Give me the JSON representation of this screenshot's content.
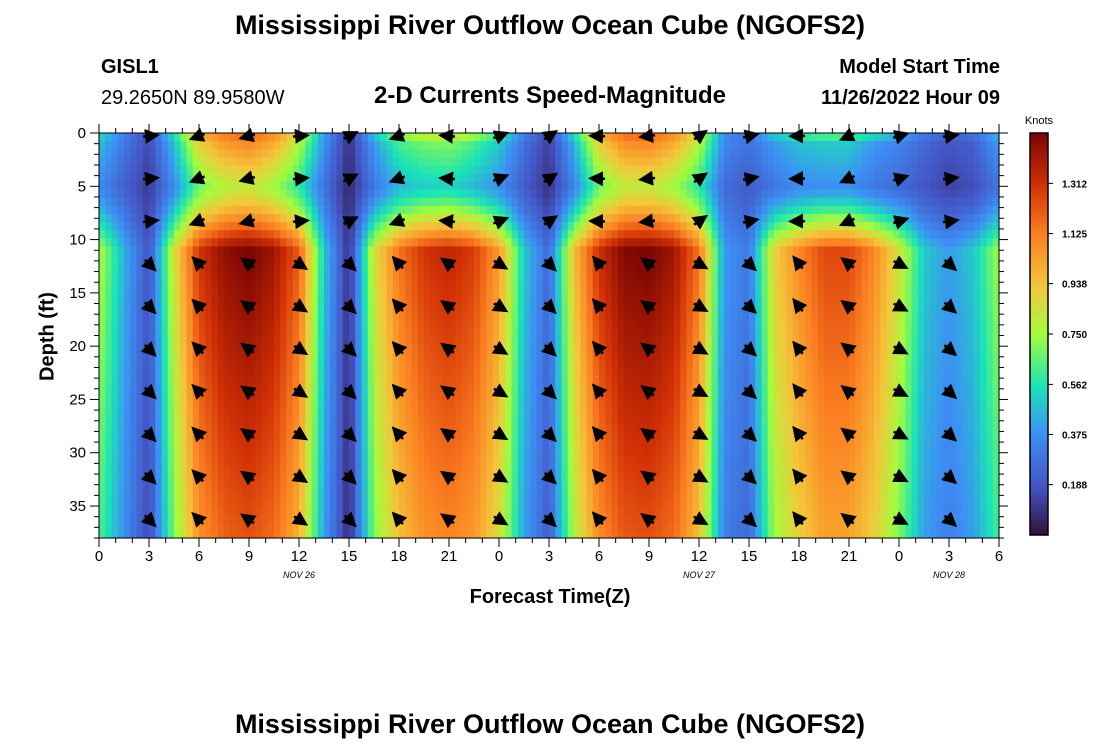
{
  "header": {
    "title": "Mississippi River Outflow Ocean Cube (NGOFS2)",
    "station": "GISL1",
    "location": "29.2650N  89.9580W",
    "subtitle": "2-D Currents Speed-Magnitude",
    "model_start_label": "Model Start Time",
    "model_start_value": "11/26/2022 Hour 09"
  },
  "footer": {
    "title": "Mississippi River Outflow Ocean Cube (NGOFS2)"
  },
  "chart_data": {
    "type": "heatmap",
    "xlabel": "Forecast Time(Z)",
    "ylabel": "Depth (ft)",
    "x_tick_labels": [
      "0",
      "3",
      "6",
      "9",
      "12",
      "15",
      "18",
      "21",
      "0",
      "3",
      "6",
      "9",
      "12",
      "15",
      "18",
      "21",
      "0",
      "3",
      "6"
    ],
    "x_range_hours": [
      0,
      54
    ],
    "date_labels": [
      {
        "text": "NOV 26",
        "hour": 12
      },
      {
        "text": "NOV 27",
        "hour": 36
      },
      {
        "text": "NOV 28",
        "hour": 51
      }
    ],
    "y_ticks": [
      0,
      5,
      10,
      15,
      20,
      25,
      30,
      35
    ],
    "y_range_ft": [
      0,
      38
    ],
    "colorbar": {
      "unit": "Knots",
      "ticks": [
        "0.188",
        "0.375",
        "0.562",
        "0.750",
        "0.938",
        "1.125",
        "1.312"
      ],
      "range": [
        0.0,
        1.5
      ]
    },
    "speed_profile": {
      "hours": [
        0,
        1.5,
        3,
        4.5,
        6,
        7.5,
        9,
        10.5,
        12,
        13.5,
        15,
        16.5,
        18,
        19.5,
        21,
        22.5,
        24,
        25.5,
        27,
        28.5,
        30,
        31.5,
        33,
        34.5,
        36,
        37.5,
        39,
        40.5,
        42,
        43.5,
        45,
        46.5,
        48,
        49.5,
        51,
        52.5,
        54
      ],
      "deep": [
        0.78,
        0.45,
        0.18,
        0.85,
        1.3,
        1.45,
        1.5,
        1.42,
        1.2,
        0.5,
        0.08,
        0.85,
        1.15,
        1.3,
        1.35,
        1.28,
        1.05,
        0.5,
        0.25,
        0.95,
        1.32,
        1.48,
        1.5,
        1.42,
        1.15,
        0.4,
        0.3,
        0.9,
        1.1,
        1.25,
        1.25,
        1.1,
        0.85,
        0.5,
        0.4,
        0.5,
        0.75
      ],
      "surface": [
        0.48,
        0.3,
        0.15,
        0.48,
        0.9,
        1.05,
        1.1,
        1.0,
        0.78,
        0.38,
        0.08,
        0.4,
        0.62,
        0.68,
        0.7,
        0.62,
        0.5,
        0.28,
        0.12,
        0.45,
        0.9,
        1.08,
        1.1,
        1.0,
        0.78,
        0.35,
        0.28,
        0.4,
        0.48,
        0.5,
        0.5,
        0.4,
        0.34,
        0.25,
        0.18,
        0.22,
        0.4
      ]
    },
    "vector_columns_hours": [
      3,
      6,
      9,
      12,
      15,
      18,
      21,
      24,
      27,
      30,
      33,
      36,
      39,
      42,
      45,
      48,
      51
    ],
    "vector_rows_ft": [
      0,
      4,
      8,
      12,
      16,
      20,
      24,
      28,
      32,
      36
    ]
  }
}
